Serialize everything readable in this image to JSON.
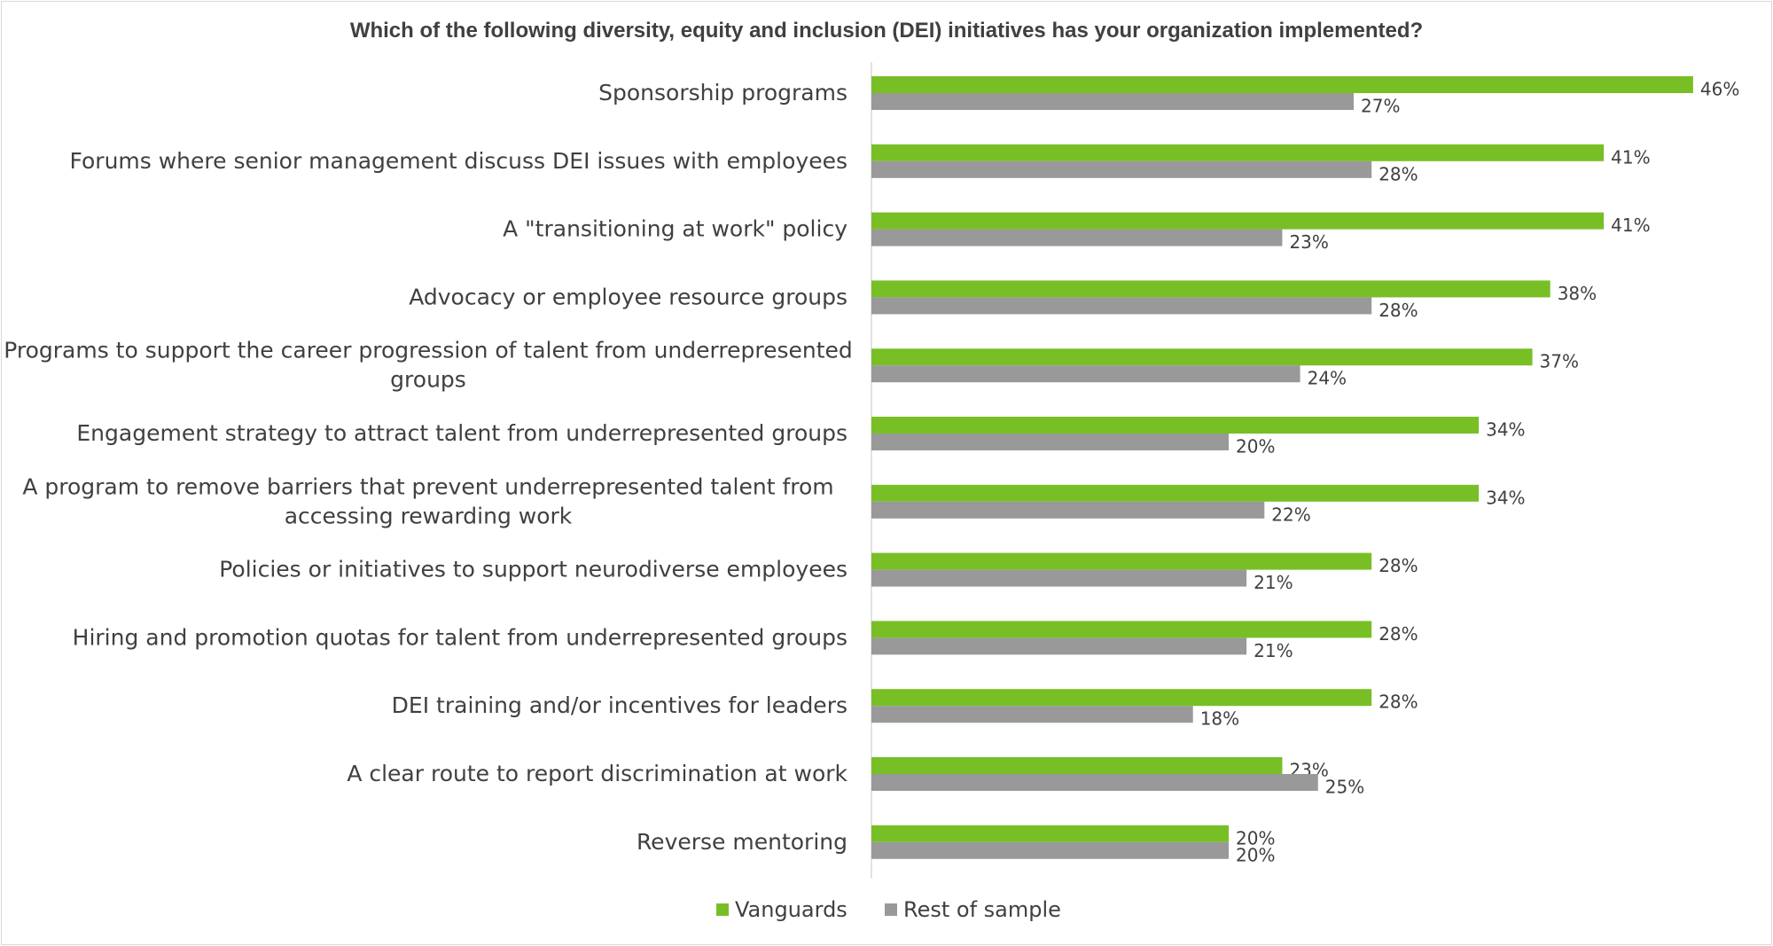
{
  "chart_data": {
    "type": "bar",
    "orientation": "horizontal",
    "title": "Which of the following diversity, equity and inclusion (DEI) initiatives has your organization implemented?",
    "categories": [
      "Sponsorship programs",
      "Forums where senior management discuss DEI issues with employees",
      "A \"transitioning at work\" policy",
      "Advocacy or employee resource groups",
      "Programs to support the career progression of talent from underrepresented groups",
      "Engagement strategy to attract talent from underrepresented groups",
      "A program to remove barriers that prevent underrepresented talent from accessing rewarding work",
      "Policies or initiatives to support neurodiverse employees",
      "Hiring and promotion quotas for talent from underrepresented groups",
      "DEI training and/or incentives for leaders",
      "A clear route to report discrimination at work",
      "Reverse mentoring"
    ],
    "category_lines": [
      [
        "Sponsorship programs"
      ],
      [
        "Forums where senior management discuss DEI issues with employees"
      ],
      [
        "A \"transitioning at work\" policy"
      ],
      [
        "Advocacy or employee resource groups"
      ],
      [
        "Programs to support the career progression of talent from underrepresented",
        "groups"
      ],
      [
        "Engagement strategy to attract talent from underrepresented groups"
      ],
      [
        "A program to remove barriers that prevent underrepresented talent from",
        "accessing rewarding work"
      ],
      [
        "Policies or initiatives to support neurodiverse employees"
      ],
      [
        "Hiring and promotion quotas for talent from underrepresented groups"
      ],
      [
        "DEI training and/or incentives for leaders"
      ],
      [
        "A clear route to report discrimination at work"
      ],
      [
        "Reverse mentoring"
      ]
    ],
    "series": [
      {
        "name": "Vanguards",
        "color": "#78bf26",
        "values": [
          46,
          41,
          41,
          38,
          37,
          34,
          34,
          28,
          28,
          28,
          23,
          20
        ]
      },
      {
        "name": "Rest of sample",
        "color": "#999999",
        "values": [
          27,
          28,
          23,
          28,
          24,
          20,
          22,
          21,
          21,
          18,
          25,
          20
        ]
      }
    ],
    "value_suffix": "%",
    "xlim": [
      0,
      50
    ],
    "axis_line_color": "#d9d9d9",
    "legend_position": "bottom"
  }
}
